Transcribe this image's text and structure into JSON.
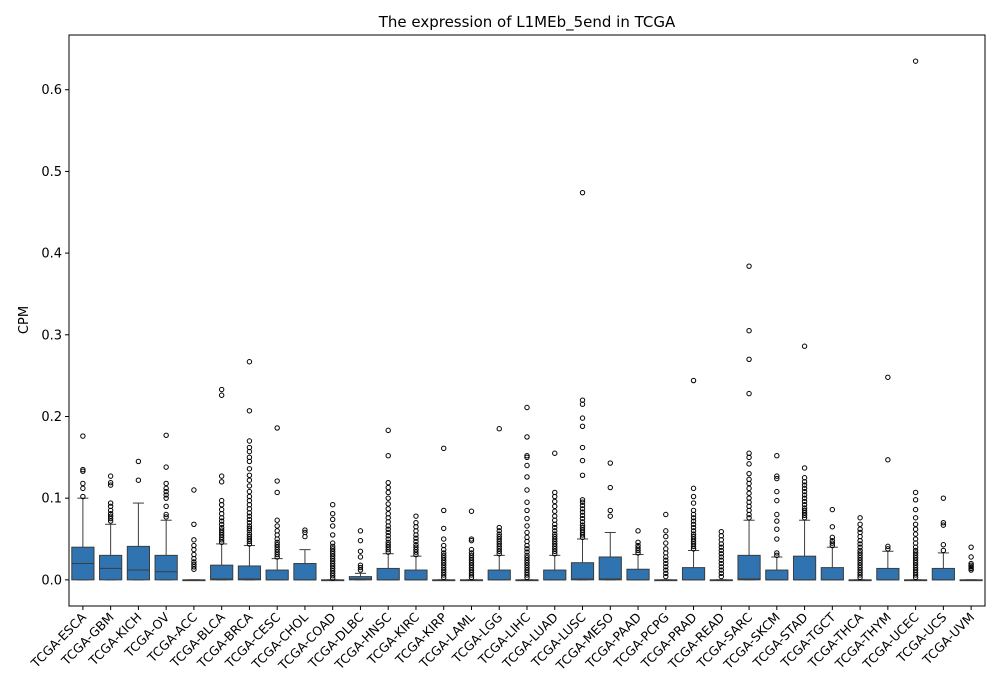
{
  "chart_data": {
    "type": "box",
    "title": "The expression of L1MEb_5end in TCGA",
    "xlabel": "",
    "ylabel": "CPM",
    "ylim": [
      -0.032,
      0.667
    ],
    "yticks": [
      "0.0",
      "0.1",
      "0.2",
      "0.3",
      "0.4",
      "0.5",
      "0.6"
    ],
    "grid": false,
    "box_color": "#2f74b0",
    "categories": [
      "TCGA-ESCA",
      "TCGA-GBM",
      "TCGA-KICH",
      "TCGA-OV",
      "TCGA-ACC",
      "TCGA-BLCA",
      "TCGA-BRCA",
      "TCGA-CESC",
      "TCGA-CHOL",
      "TCGA-COAD",
      "TCGA-DLBC",
      "TCGA-HNSC",
      "TCGA-KIRC",
      "TCGA-KIRP",
      "TCGA-LAML",
      "TCGA-LGG",
      "TCGA-LIHC",
      "TCGA-LUAD",
      "TCGA-LUSC",
      "TCGA-MESO",
      "TCGA-PAAD",
      "TCGA-PCPG",
      "TCGA-PRAD",
      "TCGA-READ",
      "TCGA-SARC",
      "TCGA-SKCM",
      "TCGA-STAD",
      "TCGA-TGCT",
      "TCGA-THCA",
      "TCGA-THYM",
      "TCGA-UCEC",
      "TCGA-UCS",
      "TCGA-UVM"
    ],
    "boxes": [
      {
        "whislo": 0,
        "q1": 0,
        "med": 0.02,
        "q3": 0.04,
        "whishi": 0.1,
        "fliers": [
          0.102,
          0.112,
          0.118,
          0.133,
          0.135,
          0.176
        ]
      },
      {
        "whislo": 0,
        "q1": 0,
        "med": 0.014,
        "q3": 0.03,
        "whishi": 0.068,
        "fliers": [
          0.072,
          0.075,
          0.078,
          0.081,
          0.085,
          0.09,
          0.094,
          0.116,
          0.119,
          0.127
        ]
      },
      {
        "whislo": 0,
        "q1": 0,
        "med": 0.012,
        "q3": 0.041,
        "whishi": 0.094,
        "fliers": [
          0.122,
          0.145
        ]
      },
      {
        "whislo": 0,
        "q1": 0,
        "med": 0.01,
        "q3": 0.03,
        "whishi": 0.073,
        "fliers": [
          0.077,
          0.08,
          0.09,
          0.1,
          0.104,
          0.108,
          0.112,
          0.118,
          0.138,
          0.177
        ]
      },
      {
        "whislo": 0,
        "q1": 0,
        "med": 0,
        "q3": 0,
        "whishi": 0,
        "fliers": [
          0.013,
          0.016,
          0.019,
          0.022,
          0.026,
          0.031,
          0.037,
          0.042,
          0.049,
          0.068,
          0.11
        ]
      },
      {
        "whislo": 0,
        "q1": 0,
        "med": 0.001,
        "q3": 0.018,
        "whishi": 0.044,
        "fliers": [
          0.046,
          0.049,
          0.052,
          0.055,
          0.058,
          0.061,
          0.064,
          0.068,
          0.072,
          0.076,
          0.081,
          0.086,
          0.092,
          0.097,
          0.12,
          0.127,
          0.226,
          0.233
        ]
      },
      {
        "whislo": 0,
        "q1": 0,
        "med": 0.001,
        "q3": 0.017,
        "whishi": 0.042,
        "fliers": [
          0.044,
          0.047,
          0.05,
          0.053,
          0.056,
          0.06,
          0.063,
          0.066,
          0.07,
          0.074,
          0.078,
          0.082,
          0.087,
          0.092,
          0.097,
          0.102,
          0.108,
          0.115,
          0.122,
          0.128,
          0.136,
          0.145,
          0.15,
          0.157,
          0.162,
          0.17,
          0.207,
          0.267
        ]
      },
      {
        "whislo": 0,
        "q1": 0,
        "med": 0,
        "q3": 0.012,
        "whishi": 0.026,
        "fliers": [
          0.028,
          0.031,
          0.034,
          0.037,
          0.04,
          0.043,
          0.046,
          0.05,
          0.055,
          0.06,
          0.066,
          0.073,
          0.107,
          0.121,
          0.186
        ]
      },
      {
        "whislo": 0,
        "q1": 0,
        "med": 0,
        "q3": 0.02,
        "whishi": 0.037,
        "fliers": [
          0.053,
          0.058,
          0.061
        ]
      },
      {
        "whislo": 0,
        "q1": 0,
        "med": 0,
        "q3": 0,
        "whishi": 0,
        "fliers": [
          0.002,
          0.005,
          0.008,
          0.011,
          0.014,
          0.017,
          0.02,
          0.023,
          0.026,
          0.029,
          0.032,
          0.035,
          0.038,
          0.041,
          0.045,
          0.055,
          0.066,
          0.074,
          0.081,
          0.092
        ]
      },
      {
        "whislo": 0,
        "q1": 0,
        "med": 0.001,
        "q3": 0.004,
        "whishi": 0.008,
        "fliers": [
          0.012,
          0.015,
          0.018,
          0.028,
          0.035,
          0.048,
          0.06
        ]
      },
      {
        "whislo": 0,
        "q1": 0,
        "med": 0,
        "q3": 0.014,
        "whishi": 0.032,
        "fliers": [
          0.034,
          0.037,
          0.04,
          0.043,
          0.046,
          0.05,
          0.054,
          0.058,
          0.062,
          0.066,
          0.071,
          0.076,
          0.081,
          0.087,
          0.093,
          0.1,
          0.107,
          0.113,
          0.119,
          0.152,
          0.183
        ]
      },
      {
        "whislo": 0,
        "q1": 0,
        "med": 0,
        "q3": 0.012,
        "whishi": 0.029,
        "fliers": [
          0.031,
          0.034,
          0.037,
          0.04,
          0.043,
          0.047,
          0.051,
          0.055,
          0.06,
          0.065,
          0.07,
          0.078
        ]
      },
      {
        "whislo": 0,
        "q1": 0,
        "med": 0,
        "q3": 0,
        "whishi": 0,
        "fliers": [
          0.003,
          0.006,
          0.009,
          0.012,
          0.015,
          0.018,
          0.021,
          0.024,
          0.027,
          0.03,
          0.033,
          0.037,
          0.042,
          0.05,
          0.063,
          0.085,
          0.161
        ]
      },
      {
        "whislo": 0,
        "q1": 0,
        "med": 0,
        "q3": 0,
        "whishi": 0,
        "fliers": [
          0.003,
          0.006,
          0.009,
          0.012,
          0.015,
          0.018,
          0.021,
          0.024,
          0.027,
          0.03,
          0.033,
          0.037,
          0.048,
          0.05,
          0.084
        ]
      },
      {
        "whislo": 0,
        "q1": 0,
        "med": 0,
        "q3": 0.012,
        "whishi": 0.03,
        "fliers": [
          0.032,
          0.035,
          0.038,
          0.041,
          0.044,
          0.047,
          0.05,
          0.053,
          0.056,
          0.06,
          0.064,
          0.185
        ]
      },
      {
        "whislo": 0,
        "q1": 0,
        "med": 0,
        "q3": 0,
        "whishi": 0,
        "fliers": [
          0.003,
          0.006,
          0.009,
          0.012,
          0.015,
          0.018,
          0.021,
          0.024,
          0.027,
          0.03,
          0.034,
          0.038,
          0.042,
          0.047,
          0.052,
          0.058,
          0.066,
          0.075,
          0.085,
          0.095,
          0.11,
          0.126,
          0.14,
          0.15,
          0.152,
          0.175,
          0.211
        ]
      },
      {
        "whislo": 0,
        "q1": 0,
        "med": 0,
        "q3": 0.012,
        "whishi": 0.03,
        "fliers": [
          0.032,
          0.035,
          0.038,
          0.041,
          0.044,
          0.047,
          0.05,
          0.053,
          0.056,
          0.06,
          0.064,
          0.068,
          0.073,
          0.078,
          0.084,
          0.09,
          0.096,
          0.102,
          0.107,
          0.155
        ]
      },
      {
        "whislo": 0,
        "q1": 0,
        "med": 0.001,
        "q3": 0.021,
        "whishi": 0.05,
        "fliers": [
          0.052,
          0.055,
          0.058,
          0.061,
          0.064,
          0.067,
          0.071,
          0.075,
          0.079,
          0.083,
          0.087,
          0.091,
          0.095,
          0.098,
          0.128,
          0.146,
          0.162,
          0.188,
          0.198,
          0.215,
          0.22,
          0.474
        ]
      },
      {
        "whislo": 0,
        "q1": 0,
        "med": 0.001,
        "q3": 0.028,
        "whishi": 0.058,
        "fliers": [
          0.078,
          0.085,
          0.113,
          0.143
        ]
      },
      {
        "whislo": 0,
        "q1": 0,
        "med": 0,
        "q3": 0.013,
        "whishi": 0.031,
        "fliers": [
          0.033,
          0.036,
          0.039,
          0.042,
          0.046,
          0.06
        ]
      },
      {
        "whislo": 0,
        "q1": 0,
        "med": 0,
        "q3": 0,
        "whishi": 0,
        "fliers": [
          0.004,
          0.008,
          0.012,
          0.016,
          0.02,
          0.024,
          0.028,
          0.033,
          0.038,
          0.045,
          0.053,
          0.06,
          0.08
        ]
      },
      {
        "whislo": 0,
        "q1": 0,
        "med": 0,
        "q3": 0.015,
        "whishi": 0.036,
        "fliers": [
          0.038,
          0.041,
          0.044,
          0.047,
          0.05,
          0.053,
          0.056,
          0.06,
          0.064,
          0.068,
          0.072,
          0.076,
          0.08,
          0.085,
          0.094,
          0.102,
          0.112,
          0.244
        ]
      },
      {
        "whislo": 0,
        "q1": 0,
        "med": 0,
        "q3": 0,
        "whishi": 0,
        "fliers": [
          0.004,
          0.008,
          0.012,
          0.016,
          0.02,
          0.024,
          0.028,
          0.032,
          0.036,
          0.04,
          0.044,
          0.049,
          0.054,
          0.059
        ]
      },
      {
        "whislo": 0,
        "q1": 0,
        "med": 0.001,
        "q3": 0.03,
        "whishi": 0.073,
        "fliers": [
          0.076,
          0.08,
          0.085,
          0.09,
          0.095,
          0.1,
          0.106,
          0.112,
          0.118,
          0.123,
          0.13,
          0.142,
          0.15,
          0.155,
          0.228,
          0.27,
          0.305,
          0.384
        ]
      },
      {
        "whislo": 0,
        "q1": 0,
        "med": 0,
        "q3": 0.012,
        "whishi": 0.028,
        "fliers": [
          0.03,
          0.033,
          0.05,
          0.062,
          0.072,
          0.08,
          0.097,
          0.108,
          0.124,
          0.127,
          0.152
        ]
      },
      {
        "whislo": 0,
        "q1": 0,
        "med": 0,
        "q3": 0.029,
        "whishi": 0.073,
        "fliers": [
          0.076,
          0.079,
          0.082,
          0.085,
          0.088,
          0.092,
          0.096,
          0.1,
          0.104,
          0.108,
          0.112,
          0.116,
          0.12,
          0.125,
          0.137,
          0.286
        ]
      },
      {
        "whislo": 0,
        "q1": 0,
        "med": 0,
        "q3": 0.015,
        "whishi": 0.04,
        "fliers": [
          0.042,
          0.045,
          0.048,
          0.052,
          0.065,
          0.086
        ]
      },
      {
        "whislo": 0,
        "q1": 0,
        "med": 0,
        "q3": 0,
        "whishi": 0,
        "fliers": [
          0.003,
          0.006,
          0.009,
          0.012,
          0.015,
          0.018,
          0.021,
          0.024,
          0.027,
          0.03,
          0.033,
          0.036,
          0.04,
          0.044,
          0.048,
          0.053,
          0.058,
          0.062,
          0.068,
          0.076
        ]
      },
      {
        "whislo": 0,
        "q1": 0,
        "med": 0,
        "q3": 0.014,
        "whishi": 0.035,
        "fliers": [
          0.038,
          0.041,
          0.147,
          0.248
        ]
      },
      {
        "whislo": 0,
        "q1": 0,
        "med": 0,
        "q3": 0,
        "whishi": 0,
        "fliers": [
          0.003,
          0.006,
          0.009,
          0.012,
          0.015,
          0.018,
          0.021,
          0.024,
          0.027,
          0.03,
          0.033,
          0.036,
          0.04,
          0.045,
          0.05,
          0.056,
          0.062,
          0.068,
          0.076,
          0.086,
          0.098,
          0.107,
          0.635
        ]
      },
      {
        "whislo": 0,
        "q1": 0,
        "med": 0,
        "q3": 0.014,
        "whishi": 0.033,
        "fliers": [
          0.036,
          0.043,
          0.067,
          0.07,
          0.1
        ]
      },
      {
        "whislo": 0,
        "q1": 0,
        "med": 0,
        "q3": 0,
        "whishi": 0,
        "fliers": [
          0.012,
          0.014,
          0.016,
          0.018,
          0.02,
          0.028,
          0.04
        ]
      }
    ]
  }
}
